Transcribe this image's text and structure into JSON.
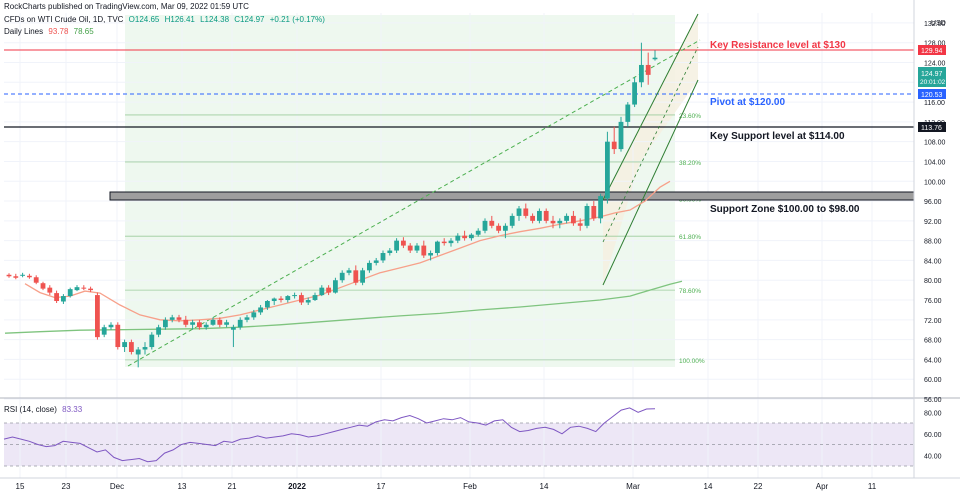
{
  "header": {
    "publisher": "RockCharts published on TradingView.com, Mar 09, 2022 01:59 UTC",
    "symbol": "CFDs on WTI Crude Oil, 1D, TVC",
    "ohlc": [
      "O124.65",
      "H126.41",
      "L124.38",
      "C124.97",
      "+0.21 (+0.17%)"
    ],
    "ma_label": "Daily Lines",
    "ma_values": [
      "93.78",
      "78.65"
    ]
  },
  "colors": {
    "up": "#26a69a",
    "down": "#ef5350",
    "resistance": "#f23645",
    "pivot": "#2962ff",
    "support": "#131722",
    "ma_fast": "#f7a08a",
    "ma_slow": "#7fc47f",
    "rsi_line": "#7e57c2",
    "fib_fill": "#e8f5e9",
    "channel_fill": "#f5f0e0"
  },
  "annotations": {
    "resistance": "Key Resistance level at $130",
    "pivot": "Pivot at $120.00",
    "support": "Key Support level at $114.00",
    "zone": "Support Zone $100.00 to $98.00"
  },
  "price_badges": {
    "resistance": "129.94",
    "last": "124.97",
    "countdown": "20:01:02",
    "pivot": "120.53",
    "support": "113.76",
    "currency": "USD"
  },
  "fib_levels": [
    {
      "label": "23.60%",
      "price": 113.4
    },
    {
      "label": "38.20%",
      "price": 103.9
    },
    {
      "label": "50.00%",
      "price": 96.5
    },
    {
      "label": "61.80%",
      "price": 88.9
    },
    {
      "label": "78.60%",
      "price": 78.0
    },
    {
      "label": "100.00%",
      "price": 63.9
    }
  ],
  "rsi": {
    "label": "RSI (14, close)",
    "value": "83.33",
    "ticks": [
      "80.00",
      "60.00",
      "40.00"
    ]
  },
  "chart_data": {
    "type": "candlestick",
    "x_tick_labels": [
      "15",
      "23",
      "Dec",
      "13",
      "21",
      "2022",
      "17",
      "Feb",
      "14",
      "Mar",
      "14",
      "22",
      "Apr",
      "11"
    ],
    "y_tick_labels": [
      "132.00",
      "128.00",
      "124.00",
      "120.00",
      "116.00",
      "112.00",
      "108.00",
      "104.00",
      "100.00",
      "96.00",
      "92.00",
      "88.00",
      "84.00",
      "80.00",
      "76.00",
      "72.00",
      "68.00",
      "64.00",
      "60.00",
      "56.00"
    ],
    "ylim": [
      56,
      134
    ],
    "candles": [
      [
        81.1,
        81.4,
        80.5,
        80.8
      ],
      [
        80.8,
        81.3,
        80.2,
        80.5
      ],
      [
        81.0,
        81.5,
        80.6,
        81.1
      ],
      [
        80.9,
        81.3,
        80.3,
        80.6
      ],
      [
        80.6,
        81.0,
        79.2,
        79.5
      ],
      [
        79.4,
        79.7,
        78.0,
        78.3
      ],
      [
        78.5,
        79.0,
        77.0,
        77.5
      ],
      [
        77.4,
        77.9,
        75.4,
        75.8
      ],
      [
        75.7,
        77.2,
        75.2,
        76.8
      ],
      [
        76.8,
        78.5,
        76.5,
        78.2
      ],
      [
        78.0,
        79.0,
        77.8,
        78.6
      ],
      [
        78.5,
        79.0,
        78.0,
        78.3
      ],
      [
        78.3,
        78.7,
        77.6,
        78.0
      ],
      [
        77.0,
        77.5,
        68.0,
        68.5
      ],
      [
        69.0,
        71.0,
        68.5,
        70.5
      ],
      [
        70.5,
        71.5,
        70.0,
        71.0
      ],
      [
        71.0,
        71.5,
        66.0,
        66.5
      ],
      [
        66.5,
        68.0,
        65.5,
        67.5
      ],
      [
        67.5,
        68.0,
        65.0,
        65.5
      ],
      [
        65.0,
        66.5,
        62.4,
        66.0
      ],
      [
        66.0,
        67.5,
        65.0,
        66.5
      ],
      [
        66.5,
        69.5,
        66.0,
        69.0
      ],
      [
        69.0,
        71.0,
        68.5,
        70.5
      ],
      [
        70.5,
        72.5,
        70.0,
        72.0
      ],
      [
        72.0,
        73.0,
        71.5,
        72.5
      ],
      [
        72.5,
        73.0,
        71.5,
        72.0
      ],
      [
        72.0,
        72.8,
        70.5,
        71.0
      ],
      [
        71.0,
        72.0,
        70.0,
        71.5
      ],
      [
        71.5,
        72.0,
        70.0,
        70.5
      ],
      [
        70.5,
        71.5,
        70.0,
        71.0
      ],
      [
        71.0,
        72.5,
        70.8,
        72.0
      ],
      [
        72.0,
        72.5,
        70.5,
        71.0
      ],
      [
        71.0,
        72.0,
        70.5,
        71.5
      ],
      [
        70.0,
        71.0,
        66.5,
        70.5
      ],
      [
        70.5,
        72.5,
        70.0,
        72.0
      ],
      [
        72.0,
        73.0,
        71.5,
        72.5
      ],
      [
        72.5,
        74.0,
        72.0,
        73.5
      ],
      [
        73.5,
        75.0,
        73.0,
        74.5
      ],
      [
        74.5,
        76.0,
        74.0,
        75.8
      ],
      [
        75.8,
        76.5,
        75.0,
        76.3
      ],
      [
        76.3,
        76.8,
        75.5,
        76.0
      ],
      [
        76.0,
        77.0,
        75.5,
        76.8
      ],
      [
        76.8,
        77.5,
        76.3,
        77.0
      ],
      [
        77.0,
        77.5,
        75.0,
        75.5
      ],
      [
        75.5,
        76.5,
        75.0,
        76.0
      ],
      [
        76.0,
        77.5,
        75.8,
        77.0
      ],
      [
        77.0,
        79.0,
        76.8,
        78.5
      ],
      [
        78.5,
        79.0,
        77.0,
        77.5
      ],
      [
        77.5,
        80.5,
        77.3,
        80.0
      ],
      [
        80.0,
        82.0,
        79.5,
        81.5
      ],
      [
        81.5,
        82.5,
        81.0,
        82.0
      ],
      [
        82.0,
        83.0,
        79.0,
        79.5
      ],
      [
        79.5,
        82.5,
        79.0,
        82.0
      ],
      [
        82.0,
        84.0,
        81.5,
        83.5
      ],
      [
        83.5,
        84.5,
        83.0,
        84.0
      ],
      [
        84.0,
        86.0,
        83.5,
        85.5
      ],
      [
        85.5,
        86.5,
        85.0,
        86.0
      ],
      [
        86.0,
        88.5,
        85.5,
        88.0
      ],
      [
        88.0,
        88.7,
        86.5,
        87.0
      ],
      [
        87.0,
        87.5,
        85.5,
        86.0
      ],
      [
        86.0,
        87.5,
        85.5,
        87.0
      ],
      [
        87.0,
        88.0,
        84.5,
        85.0
      ],
      [
        85.0,
        86.0,
        84.0,
        85.5
      ],
      [
        85.5,
        88.0,
        85.0,
        87.8
      ],
      [
        87.8,
        88.5,
        87.0,
        87.5
      ],
      [
        87.5,
        88.5,
        86.8,
        88.0
      ],
      [
        88.0,
        89.5,
        87.5,
        89.0
      ],
      [
        89.0,
        90.0,
        88.0,
        88.5
      ],
      [
        88.5,
        89.5,
        88.0,
        89.2
      ],
      [
        89.2,
        90.5,
        88.8,
        90.0
      ],
      [
        90.0,
        92.5,
        89.5,
        92.0
      ],
      [
        92.0,
        93.0,
        90.5,
        91.0
      ],
      [
        91.0,
        91.5,
        89.5,
        90.0
      ],
      [
        90.0,
        91.5,
        88.5,
        91.0
      ],
      [
        91.0,
        93.5,
        90.5,
        93.0
      ],
      [
        93.0,
        95.0,
        92.0,
        94.5
      ],
      [
        94.5,
        95.5,
        92.5,
        93.0
      ],
      [
        93.0,
        93.5,
        91.5,
        92.0
      ],
      [
        92.0,
        94.5,
        91.5,
        94.0
      ],
      [
        94.0,
        94.5,
        91.5,
        92.0
      ],
      [
        92.0,
        93.0,
        90.5,
        91.5
      ],
      [
        91.5,
        92.5,
        90.5,
        92.0
      ],
      [
        92.0,
        93.5,
        91.5,
        93.0
      ],
      [
        93.0,
        94.0,
        91.0,
        91.5
      ],
      [
        91.5,
        92.5,
        90.0,
        91.0
      ],
      [
        91.0,
        95.5,
        90.5,
        95.0
      ],
      [
        95.0,
        96.0,
        92.0,
        92.5
      ],
      [
        92.5,
        97.5,
        91.5,
        97.0
      ],
      [
        96.5,
        110.0,
        95.5,
        108.0
      ],
      [
        108.0,
        111.0,
        105.5,
        106.5
      ],
      [
        106.5,
        113.0,
        106.0,
        112.0
      ],
      [
        112.0,
        116.0,
        111.0,
        115.5
      ],
      [
        115.5,
        121.0,
        115.0,
        120.0
      ],
      [
        120.0,
        128.0,
        119.0,
        123.5
      ],
      [
        123.5,
        126.0,
        119.5,
        121.5
      ],
      [
        124.65,
        126.41,
        124.38,
        124.97
      ]
    ],
    "ma_fast": [
      [
        25,
        79.3
      ],
      [
        40,
        77.5
      ],
      [
        55,
        76.5
      ],
      [
        70,
        76.8
      ],
      [
        85,
        77.8
      ],
      [
        100,
        77.4
      ],
      [
        120,
        75.0
      ],
      [
        140,
        73.0
      ],
      [
        160,
        72.0
      ],
      [
        180,
        71.8
      ],
      [
        200,
        72.0
      ],
      [
        220,
        72.3
      ],
      [
        240,
        73.0
      ],
      [
        260,
        74.0
      ],
      [
        280,
        75.0
      ],
      [
        300,
        76.0
      ],
      [
        320,
        77.0
      ],
      [
        340,
        78.5
      ],
      [
        360,
        80.0
      ],
      [
        380,
        81.5
      ],
      [
        400,
        82.5
      ],
      [
        420,
        83.5
      ],
      [
        440,
        85.0
      ],
      [
        460,
        86.5
      ],
      [
        480,
        88.0
      ],
      [
        500,
        89.0
      ],
      [
        520,
        89.8
      ],
      [
        540,
        90.5
      ],
      [
        560,
        91.3
      ],
      [
        580,
        92.0
      ],
      [
        600,
        92.8
      ],
      [
        615,
        93.6
      ],
      [
        630,
        94.2
      ],
      [
        645,
        96.0
      ],
      [
        660,
        98.8
      ],
      [
        670,
        100.0
      ]
    ],
    "ma_slow": [
      [
        5,
        69.3
      ],
      [
        40,
        69.6
      ],
      [
        80,
        69.9
      ],
      [
        120,
        70.0
      ],
      [
        160,
        70.1
      ],
      [
        200,
        70.2
      ],
      [
        240,
        70.5
      ],
      [
        280,
        71.0
      ],
      [
        320,
        71.6
      ],
      [
        360,
        72.2
      ],
      [
        400,
        72.8
      ],
      [
        440,
        73.3
      ],
      [
        480,
        74.0
      ],
      [
        520,
        74.6
      ],
      [
        560,
        75.3
      ],
      [
        600,
        76.0
      ],
      [
        630,
        76.8
      ],
      [
        650,
        78.0
      ],
      [
        670,
        79.2
      ],
      [
        682,
        79.8
      ]
    ],
    "rsi_values": [
      55,
      57,
      55,
      53,
      50,
      48,
      49,
      53,
      52,
      51,
      47,
      43,
      45,
      38,
      35,
      36,
      37,
      34,
      35,
      42,
      45,
      50,
      52,
      51,
      50,
      49,
      53,
      52,
      55,
      56,
      58,
      56,
      57,
      58,
      60,
      59,
      57,
      58,
      60,
      62,
      64,
      66,
      68,
      67,
      71,
      73,
      72,
      75,
      77,
      74,
      70,
      72,
      74,
      73,
      75,
      71,
      70,
      68,
      72,
      73,
      66,
      62,
      63,
      65,
      66,
      64,
      60,
      66,
      67,
      65,
      62,
      70,
      76,
      82,
      84,
      80,
      83,
      83.33
    ]
  }
}
